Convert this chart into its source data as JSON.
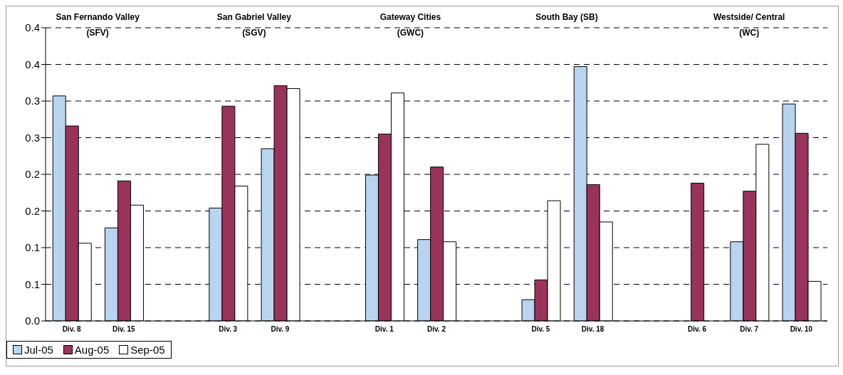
{
  "chart_data": {
    "type": "bar",
    "categories": [
      "Div. 8",
      "Div. 15",
      null,
      "Div. 3",
      "Div. 9",
      null,
      "Div. 1",
      "Div. 2",
      null,
      "Div. 5",
      "Div. 18",
      null,
      "Div. 6",
      "Div. 7",
      "Div. 10"
    ],
    "series": [
      {
        "name": "Jul-05",
        "color": "#b8d4ee",
        "values": [
          0.307,
          0.127,
          null,
          0.154,
          0.235,
          null,
          0.199,
          0.111,
          null,
          0.029,
          0.347,
          null,
          null,
          0.108,
          0.296
        ]
      },
      {
        "name": "Aug-05",
        "color": "#99335c",
        "values": [
          0.266,
          0.191,
          null,
          0.293,
          0.321,
          null,
          0.255,
          0.21,
          null,
          0.056,
          0.186,
          null,
          0.188,
          0.177,
          0.256
        ]
      },
      {
        "name": "Sep-05",
        "color": "#ffffff",
        "values": [
          0.106,
          0.158,
          null,
          0.184,
          0.317,
          null,
          0.311,
          0.108,
          null,
          0.164,
          0.135,
          null,
          null,
          0.241,
          0.054
        ]
      }
    ],
    "ylim": [
      0,
      0.4
    ],
    "yticks": [
      {
        "value": 0,
        "label": "0.0"
      },
      {
        "value": 0.05,
        "label": "0.1"
      },
      {
        "value": 0.1,
        "label": "0.1"
      },
      {
        "value": 0.15,
        "label": "0.2"
      },
      {
        "value": 0.2,
        "label": "0.2"
      },
      {
        "value": 0.25,
        "label": "0.3"
      },
      {
        "value": 0.3,
        "label": "0.3"
      },
      {
        "value": 0.35,
        "label": "0.4"
      },
      {
        "value": 0.4,
        "label": "0.4"
      }
    ],
    "annotations": [
      "San Fernando Valley\n(SFV)",
      "San Gabriel Valley\n(SGV)",
      "Gateway Cities\n(GWC)",
      "South Bay (SB)",
      "Westside/ Central\n(WC)"
    ],
    "grid": "y",
    "legend": "bottom"
  }
}
